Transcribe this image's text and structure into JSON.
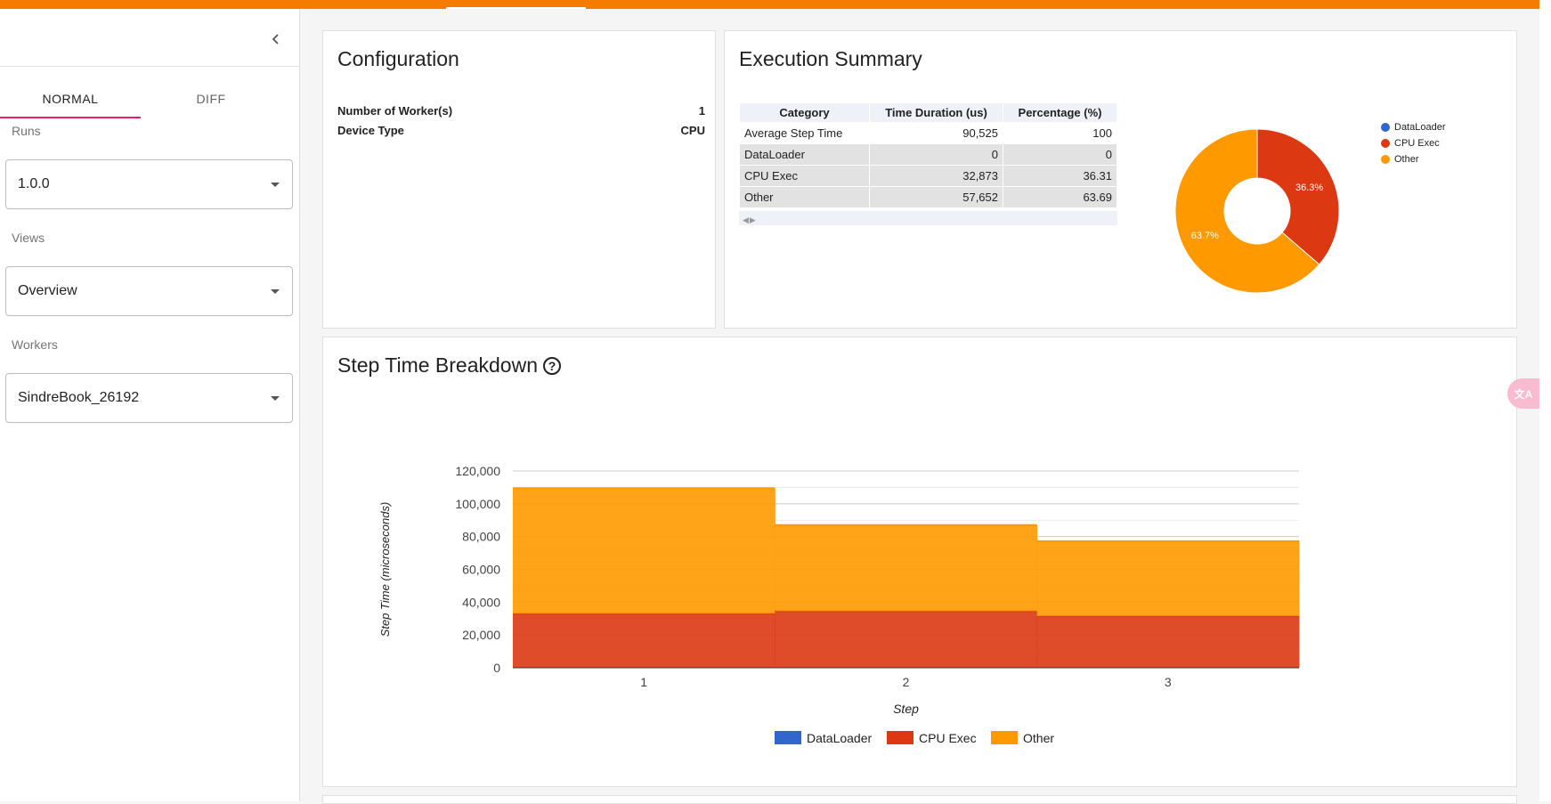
{
  "sidebar": {
    "tabs": [
      {
        "label": "NORMAL"
      },
      {
        "label": "DIFF"
      }
    ],
    "runs": {
      "label": "Runs",
      "value": "1.0.0"
    },
    "views": {
      "label": "Views",
      "value": "Overview"
    },
    "workers": {
      "label": "Workers",
      "value": "SindreBook_26192"
    }
  },
  "configuration": {
    "title": "Configuration",
    "rows": [
      {
        "key": "Number of Worker(s)",
        "value": "1"
      },
      {
        "key": "Device Type",
        "value": "CPU"
      }
    ]
  },
  "execution_summary": {
    "title": "Execution Summary",
    "table": {
      "headers": [
        "Category",
        "Time Duration (us)",
        "Percentage (%)"
      ],
      "rows": [
        [
          "Average Step Time",
          "90,525",
          "100"
        ],
        [
          "DataLoader",
          "0",
          "0"
        ],
        [
          "CPU Exec",
          "32,873",
          "36.31"
        ],
        [
          "Other",
          "57,652",
          "63.69"
        ]
      ]
    },
    "pie_legend": [
      "DataLoader",
      "CPU Exec",
      "Other"
    ],
    "pie_labels": {
      "cpu": "36.3%",
      "other": "63.7%"
    }
  },
  "step_time": {
    "title": "Step Time Breakdown",
    "xlabel": "Step",
    "ylabel": "Step Time (microseconds)",
    "legend": [
      "DataLoader",
      "CPU Exec",
      "Other"
    ]
  },
  "colors": {
    "accent": "#f57c00",
    "dataloader": "#3366cc",
    "cpu": "#dc3912",
    "other": "#ff9900"
  },
  "chart_data": [
    {
      "type": "pie",
      "title": "Execution Summary",
      "categories": [
        "DataLoader",
        "CPU Exec",
        "Other"
      ],
      "values": [
        0,
        36.31,
        63.69
      ]
    },
    {
      "type": "area",
      "title": "Step Time Breakdown",
      "xlabel": "Step",
      "ylabel": "Step Time (microseconds)",
      "categories": [
        "1",
        "2",
        "3"
      ],
      "series": [
        {
          "name": "DataLoader",
          "values": [
            0,
            0,
            0
          ]
        },
        {
          "name": "CPU Exec",
          "values": [
            33000,
            34500,
            31500
          ]
        },
        {
          "name": "Other",
          "values": [
            76500,
            52500,
            45700
          ]
        }
      ],
      "ylim": [
        0,
        120000
      ],
      "yticks": [
        "0",
        "20,000",
        "40,000",
        "60,000",
        "80,000",
        "100,000",
        "120,000"
      ]
    }
  ]
}
